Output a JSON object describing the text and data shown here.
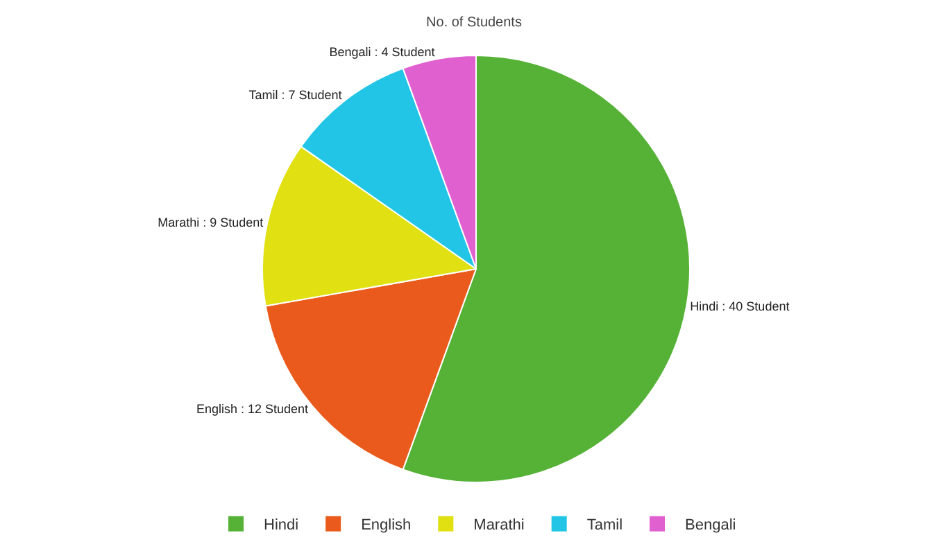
{
  "chart_data": {
    "type": "pie",
    "title": "No. of Students",
    "categories": [
      "Hindi",
      "English",
      "Marathi",
      "Tamil",
      "Bengali"
    ],
    "values": [
      40,
      12,
      9,
      7,
      4
    ],
    "colors": [
      "#55b236",
      "#ea5a1c",
      "#e0e012",
      "#22c5e6",
      "#e060d0"
    ],
    "value_labels": [
      "Hindi : 40 Student",
      "English : 12 Student",
      "Marathi : 9 Student",
      "Tamil : 7 Student",
      "Bengali : 4 Student"
    ],
    "legend": "bottom"
  }
}
